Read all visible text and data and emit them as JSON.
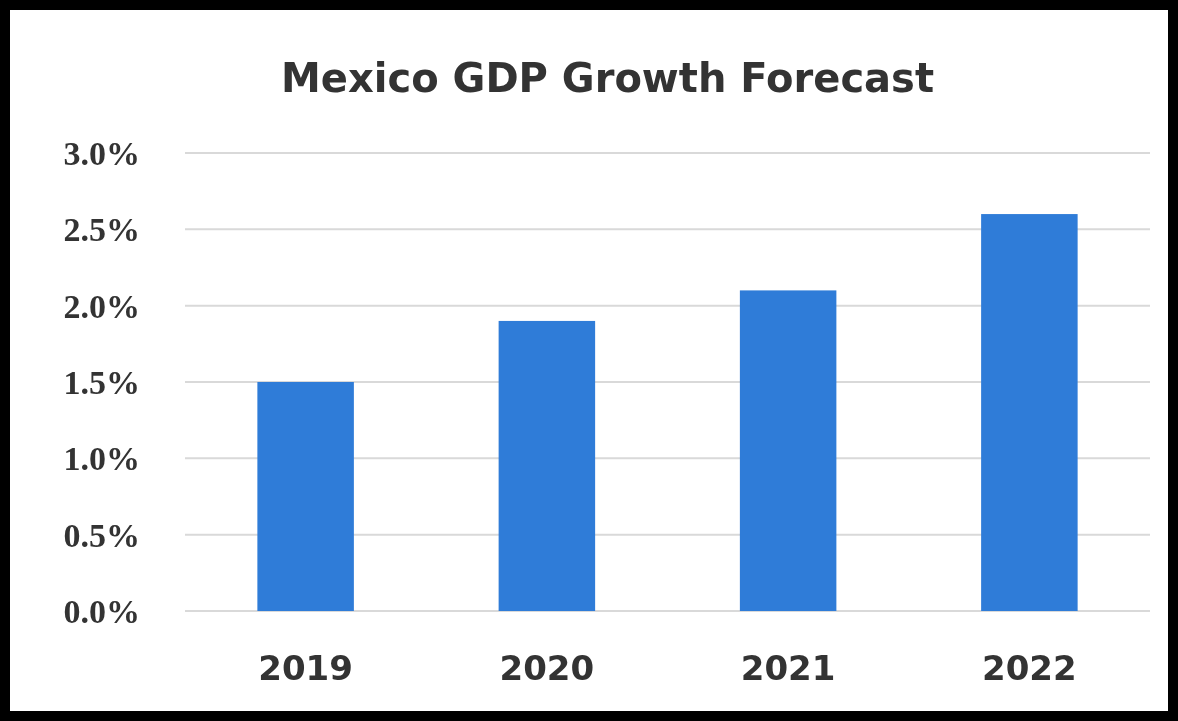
{
  "chart_data": {
    "type": "bar",
    "title": "Mexico GDP Growth Forecast",
    "categories": [
      "2019",
      "2020",
      "2021",
      "2022"
    ],
    "values": [
      1.5,
      1.9,
      2.1,
      2.6
    ],
    "color": "#2f7cd8",
    "ylim": [
      0,
      3
    ],
    "yticks": [
      {
        "value": 0,
        "label": "0.0%"
      },
      {
        "value": 0.5,
        "label": "0.5%"
      },
      {
        "value": 1,
        "label": "1.0%"
      },
      {
        "value": 1.5,
        "label": "1.5%"
      },
      {
        "value": 2,
        "label": "2.0%"
      },
      {
        "value": 2.5,
        "label": "2.5%"
      },
      {
        "value": 3,
        "label": "3.0%"
      }
    ],
    "grid": "y"
  }
}
